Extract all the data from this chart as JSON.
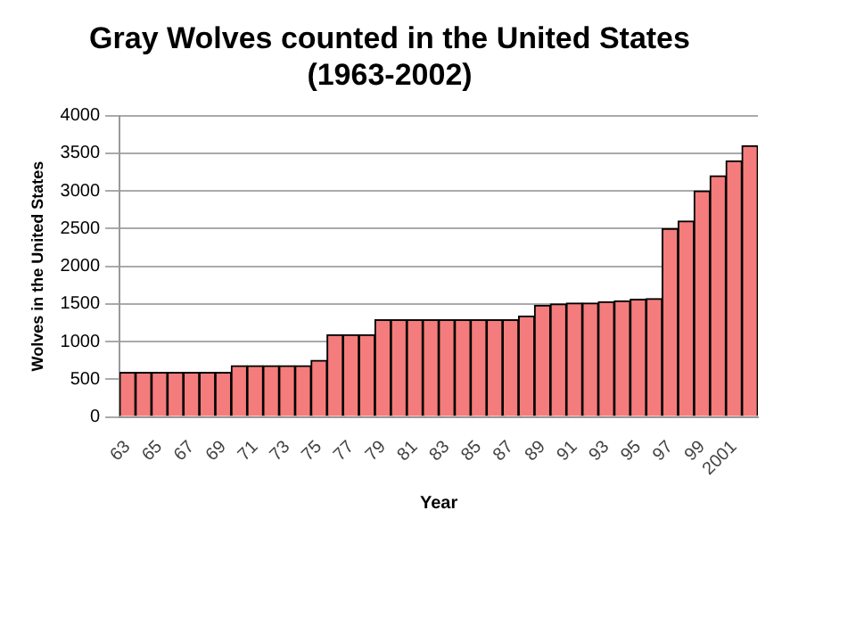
{
  "chart_data": {
    "type": "bar",
    "title": "Gray Wolves counted in the United States (1963-2002)",
    "xlabel": "Year",
    "ylabel": "Wolves in the United States",
    "categories": [
      "63",
      null,
      "65",
      null,
      "67",
      null,
      "69",
      null,
      "71",
      null,
      "73",
      null,
      "75",
      null,
      "77",
      null,
      "79",
      null,
      "81",
      null,
      "83",
      null,
      "85",
      null,
      "87",
      null,
      "89",
      null,
      "91",
      null,
      "93",
      null,
      "95",
      null,
      "97",
      null,
      "99",
      null,
      "2001",
      null
    ],
    "values": [
      590,
      590,
      590,
      590,
      590,
      590,
      590,
      680,
      680,
      680,
      680,
      680,
      750,
      1090,
      1090,
      1090,
      1290,
      1290,
      1290,
      1290,
      1290,
      1290,
      1290,
      1290,
      1290,
      1340,
      1480,
      1500,
      1510,
      1510,
      1530,
      1540,
      1560,
      1570,
      2500,
      2600,
      3000,
      3200,
      3400,
      3600
    ],
    "color": "#f47c7c",
    "ylim": [
      0,
      4000
    ],
    "yticks": [
      0,
      500,
      1000,
      1500,
      2000,
      2500,
      3000,
      3500,
      4000
    ],
    "grid": "y"
  }
}
